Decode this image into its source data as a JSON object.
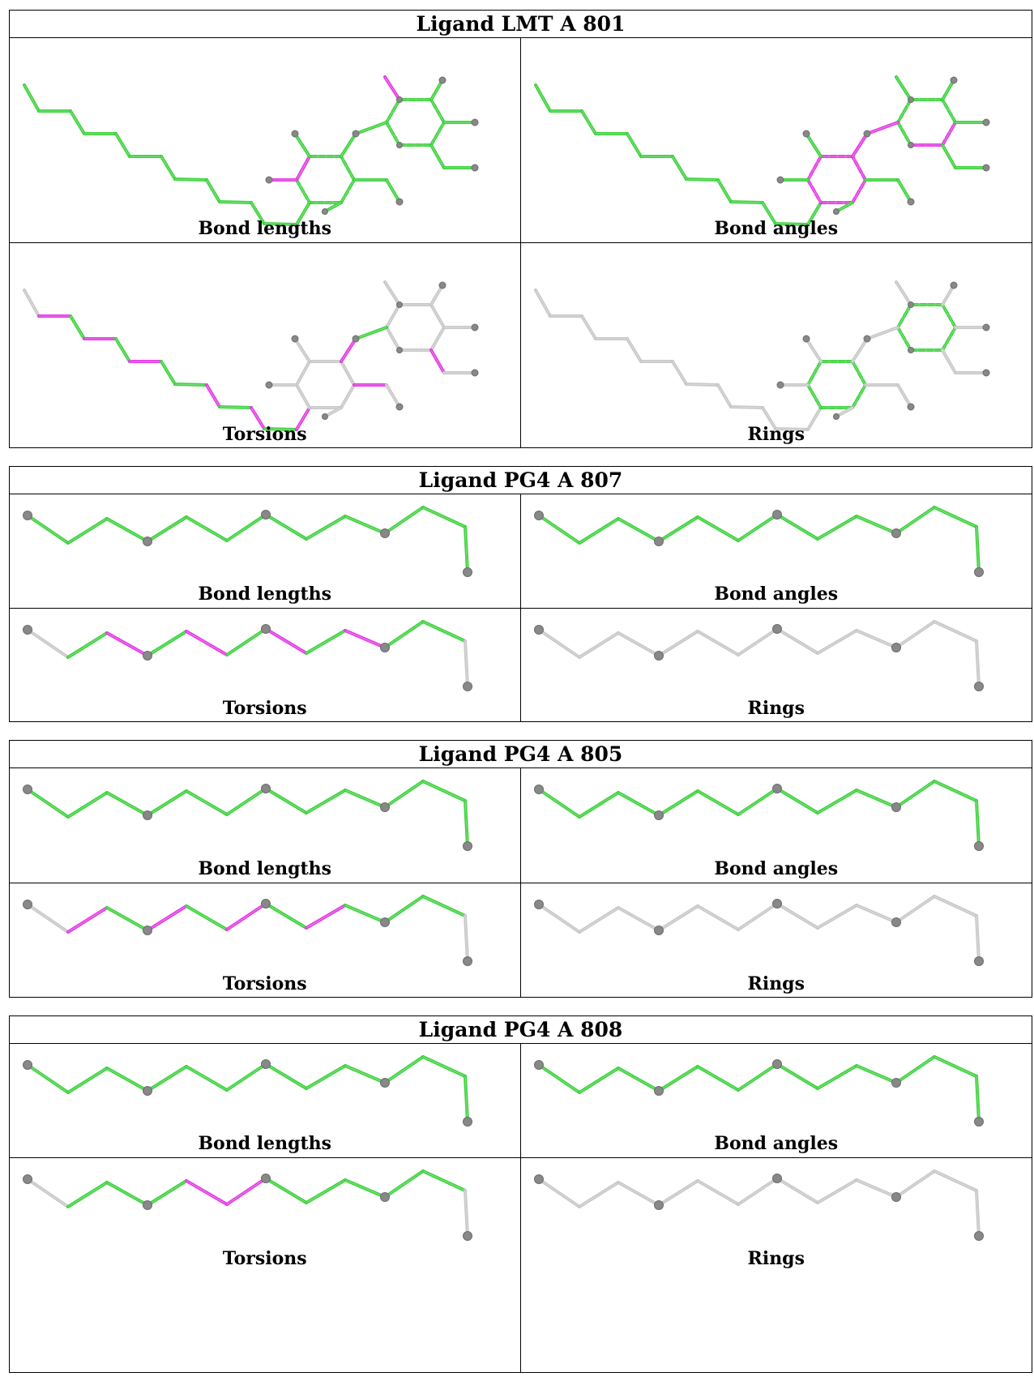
{
  "colors": {
    "ok": "#3fd23f",
    "outlier": "#e43be4",
    "neutral": "#c8c8c8",
    "atom": "#888888",
    "border": "#000000"
  },
  "ligands": [
    {
      "title": "Ligand LMT A 801",
      "molecule": "lmt",
      "panels": [
        {
          "label": "Bond lengths",
          "mode": "lmt_bonds"
        },
        {
          "label": "Bond angles",
          "mode": "lmt_angles"
        },
        {
          "label": "Torsions",
          "mode": "lmt_torsions"
        },
        {
          "label": "Rings",
          "mode": "lmt_rings"
        }
      ]
    },
    {
      "title": "Ligand PG4 A 807",
      "molecule": "pg4",
      "panels": [
        {
          "label": "Bond lengths",
          "mode": "green"
        },
        {
          "label": "Bond angles",
          "mode": "green"
        },
        {
          "label": "Torsions",
          "mode": "torsion",
          "magenta": [
            2,
            4,
            6,
            8
          ]
        },
        {
          "label": "Rings",
          "mode": "gray"
        }
      ]
    },
    {
      "title": "Ligand PG4 A 805",
      "molecule": "pg4",
      "panels": [
        {
          "label": "Bond lengths",
          "mode": "green"
        },
        {
          "label": "Bond angles",
          "mode": "green"
        },
        {
          "label": "Torsions",
          "mode": "torsion",
          "magenta": [
            1,
            3,
            5,
            7
          ]
        },
        {
          "label": "Rings",
          "mode": "gray"
        }
      ]
    },
    {
      "title": "Ligand PG4 A 808",
      "molecule": "pg4",
      "panels": [
        {
          "label": "Bond lengths",
          "mode": "green"
        },
        {
          "label": "Bond angles",
          "mode": "green"
        },
        {
          "label": "Torsions",
          "mode": "torsion",
          "magenta": [
            4,
            5
          ]
        },
        {
          "label": "Rings",
          "mode": "gray"
        }
      ]
    }
  ]
}
